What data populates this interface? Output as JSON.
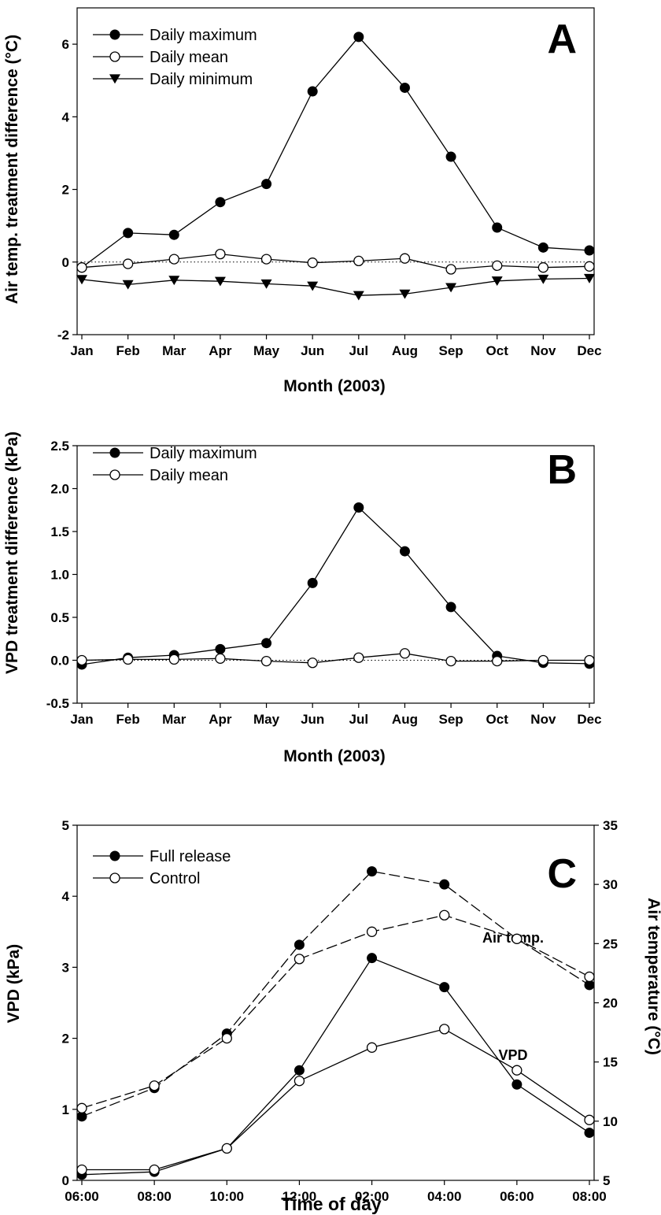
{
  "chart_data": [
    {
      "panel": "A",
      "type": "line",
      "ylabel": "Air temp. treatment difference (°C)",
      "xlabel": "Month (2003)",
      "categories": [
        "Jan",
        "Feb",
        "Mar",
        "Apr",
        "May",
        "Jun",
        "Jul",
        "Aug",
        "Sep",
        "Oct",
        "Nov",
        "Dec"
      ],
      "ylim": [
        -2,
        7
      ],
      "yticks": [
        "-2",
        "0",
        "2",
        "4",
        "6"
      ],
      "zero_line": "dotted",
      "legend_position": "top-left",
      "series": [
        {
          "name": "Daily maximum",
          "marker": "filled-circle",
          "values": [
            -0.15,
            0.8,
            0.75,
            1.65,
            2.15,
            4.7,
            6.2,
            4.8,
            2.9,
            0.95,
            0.4,
            0.32
          ]
        },
        {
          "name": "Daily mean",
          "marker": "open-circle",
          "values": [
            -0.15,
            -0.05,
            0.08,
            0.22,
            0.08,
            -0.02,
            0.03,
            0.1,
            -0.2,
            -0.1,
            -0.15,
            -0.12
          ]
        },
        {
          "name": "Daily minimum",
          "marker": "filled-triangle-down",
          "values": [
            -0.48,
            -0.62,
            -0.5,
            -0.53,
            -0.6,
            -0.66,
            -0.92,
            -0.88,
            -0.7,
            -0.52,
            -0.47,
            -0.45
          ]
        }
      ]
    },
    {
      "panel": "B",
      "type": "line",
      "ylabel": "VPD treatment difference (kPa)",
      "xlabel": "Month (2003)",
      "categories": [
        "Jan",
        "Feb",
        "Mar",
        "Apr",
        "May",
        "Jun",
        "Jul",
        "Aug",
        "Sep",
        "Oct",
        "Nov",
        "Dec"
      ],
      "ylim": [
        -0.5,
        2.5
      ],
      "yticks": [
        "-0.5",
        "0.0",
        "0.5",
        "1.0",
        "1.5",
        "2.0",
        "2.5"
      ],
      "zero_line": "dotted",
      "legend_position": "top-left",
      "series": [
        {
          "name": "Daily maximum",
          "marker": "filled-circle",
          "values": [
            -0.05,
            0.03,
            0.06,
            0.13,
            0.2,
            0.9,
            1.78,
            1.27,
            0.62,
            0.05,
            -0.03,
            -0.04
          ]
        },
        {
          "name": "Daily mean",
          "marker": "open-circle",
          "values": [
            0.0,
            0.01,
            0.01,
            0.02,
            -0.01,
            -0.03,
            0.03,
            0.08,
            -0.01,
            -0.01,
            0.0,
            0.0
          ]
        }
      ]
    },
    {
      "panel": "C",
      "type": "line",
      "xlabel": "Time of day",
      "ylabel": "VPD (kPa)",
      "y2label": "Air temperature (°C)",
      "categories": [
        "06:00",
        "08:00",
        "10:00",
        "12:00",
        "02:00",
        "04:00",
        "06:00",
        "08:00"
      ],
      "ylim": [
        0,
        5
      ],
      "yticks": [
        "0",
        "1",
        "2",
        "3",
        "4",
        "5"
      ],
      "y2lim": [
        5,
        35
      ],
      "y2ticks": [
        "5",
        "10",
        "15",
        "20",
        "25",
        "30",
        "35"
      ],
      "legend_position": "top-left",
      "annotations": {
        "air_temp": "Air temp.",
        "vpd": "VPD"
      },
      "series": [
        {
          "name": "Full release",
          "quantity": "VPD",
          "marker": "filled-circle",
          "line": "solid",
          "axis": "left",
          "values": [
            0.08,
            0.12,
            0.45,
            1.55,
            3.13,
            2.72,
            1.35,
            0.67
          ]
        },
        {
          "name": "Control",
          "quantity": "VPD",
          "marker": "open-circle",
          "line": "solid",
          "axis": "left",
          "values": [
            0.15,
            0.15,
            0.45,
            1.4,
            1.87,
            2.13,
            1.55,
            0.85
          ]
        },
        {
          "name": "Full release",
          "quantity": "Air temp.",
          "marker": "filled-circle",
          "line": "dashed",
          "axis": "right",
          "values": [
            10.4,
            12.8,
            17.4,
            24.9,
            31.1,
            30.0,
            25.4,
            21.5
          ]
        },
        {
          "name": "Control",
          "quantity": "Air temp.",
          "marker": "open-circle",
          "line": "dashed",
          "axis": "right",
          "values": [
            11.1,
            13.0,
            17.0,
            23.7,
            26.0,
            27.4,
            25.4,
            22.2
          ]
        }
      ]
    }
  ],
  "panel_letters": [
    "A",
    "B",
    "C"
  ]
}
